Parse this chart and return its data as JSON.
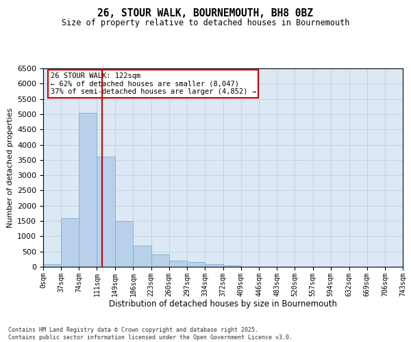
{
  "title_line1": "26, STOUR WALK, BOURNEMOUTH, BH8 0BZ",
  "title_line2": "Size of property relative to detached houses in Bournemouth",
  "xlabel": "Distribution of detached houses by size in Bournemouth",
  "ylabel": "Number of detached properties",
  "footnote": "Contains HM Land Registry data © Crown copyright and database right 2025.\nContains public sector information licensed under the Open Government Licence v3.0.",
  "annotation_line1": "26 STOUR WALK: 122sqm",
  "annotation_line2": "← 62% of detached houses are smaller (8,047)",
  "annotation_line3": "37% of semi-detached houses are larger (4,852) →",
  "property_size": 122,
  "bar_edges": [
    0,
    37,
    74,
    111,
    149,
    186,
    223,
    260,
    297,
    334,
    372,
    409,
    446,
    483,
    520,
    557,
    594,
    632,
    669,
    706,
    743
  ],
  "bar_heights": [
    80,
    1600,
    5050,
    3600,
    1500,
    700,
    400,
    200,
    150,
    100,
    50,
    10,
    0,
    0,
    0,
    0,
    0,
    0,
    0,
    0
  ],
  "bar_color": "#b8d0ea",
  "bar_edge_color": "#7aafd4",
  "vline_color": "#cc0000",
  "vline_x": 122,
  "grid_color": "#c0d0e0",
  "background_color": "#dce8f4",
  "annotation_box_color": "#cc0000",
  "ylim": [
    0,
    6500
  ],
  "yticks": [
    0,
    500,
    1000,
    1500,
    2000,
    2500,
    3000,
    3500,
    4000,
    4500,
    5000,
    5500,
    6000,
    6500
  ]
}
